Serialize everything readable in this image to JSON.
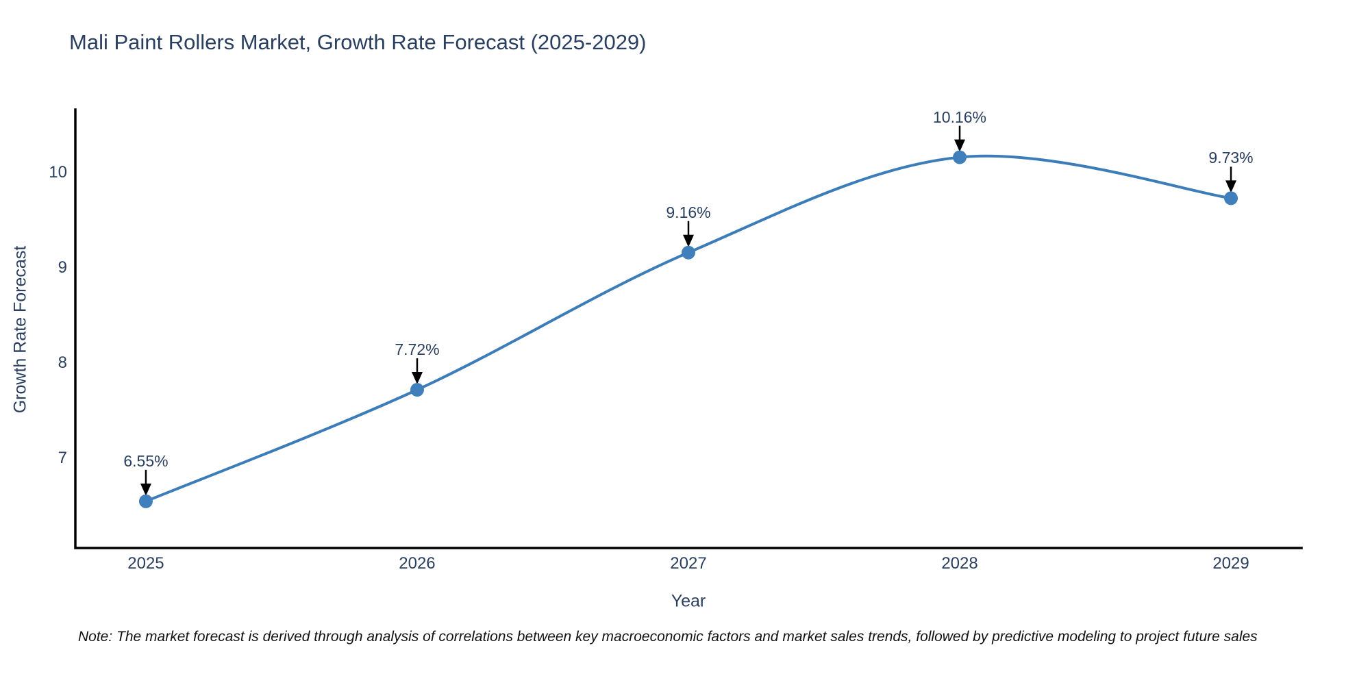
{
  "title": "Mali Paint Rollers Market, Growth Rate Forecast (2025-2029)",
  "note": "Note: The market forecast is derived through analysis of correlations between key macroeconomic factors and market sales trends, followed by predictive modeling to project future sales",
  "colors": {
    "line": "#3c7db9",
    "marker": "#3f7fbb",
    "axis": "#000000",
    "arrow": "#000000",
    "text": "#2a3f5f",
    "background": "#ffffff"
  },
  "chart_data": {
    "type": "line",
    "line_shape": "spline",
    "title": "Mali Paint Rollers Market, Growth Rate Forecast (2025-2029)",
    "xlabel": "Year",
    "ylabel": "Growth Rate Forecast",
    "x": [
      2025,
      2026,
      2027,
      2028,
      2029
    ],
    "values": [
      6.55,
      7.72,
      9.16,
      10.16,
      9.73
    ],
    "point_labels": [
      "6.55%",
      "7.72%",
      "9.16%",
      "10.16%",
      "9.73%"
    ],
    "xticks": [
      2025,
      2026,
      2027,
      2028,
      2029
    ],
    "yticks": [
      7,
      8,
      9,
      10
    ],
    "xlim": [
      2024.74,
      2029.26
    ],
    "ylim": [
      6.06,
      10.66
    ],
    "grid": false,
    "legend": "none",
    "annotations_style": "value label above each point with downward black arrow"
  }
}
